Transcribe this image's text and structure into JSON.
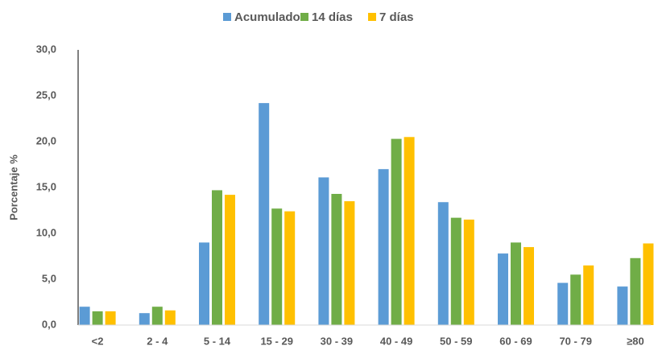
{
  "chart_data": {
    "type": "bar",
    "y_label": "Porcentaje %",
    "legend": "top",
    "categories": [
      "<2",
      "2 - 4",
      "5 - 14",
      "15 - 29",
      "30 - 39",
      "40 - 49",
      "50 - 59",
      "60 - 69",
      "70 - 79",
      "≥80"
    ],
    "series": [
      {
        "name": "Acumulado",
        "color": "#5b9bd5",
        "values": [
          2.0,
          1.3,
          9.0,
          24.2,
          16.1,
          17.0,
          13.4,
          7.8,
          4.6,
          4.2
        ]
      },
      {
        "name": "14 días",
        "color": "#70ad47",
        "values": [
          1.5,
          2.0,
          14.7,
          12.7,
          14.3,
          20.3,
          11.7,
          9.0,
          5.5,
          7.3
        ]
      },
      {
        "name": "7 días",
        "color": "#ffc000",
        "values": [
          1.5,
          1.6,
          14.2,
          12.4,
          13.5,
          20.5,
          11.5,
          8.5,
          6.5,
          8.9
        ]
      }
    ],
    "ylim": [
      0,
      30
    ],
    "yticks": [
      {
        "value": 0,
        "label": "0,0"
      },
      {
        "value": 5,
        "label": "5,0"
      },
      {
        "value": 10,
        "label": "10,0"
      },
      {
        "value": 15,
        "label": "15,0"
      },
      {
        "value": 20,
        "label": "20,0"
      },
      {
        "value": 25,
        "label": "25,0"
      },
      {
        "value": 30,
        "label": "30,0"
      }
    ]
  }
}
